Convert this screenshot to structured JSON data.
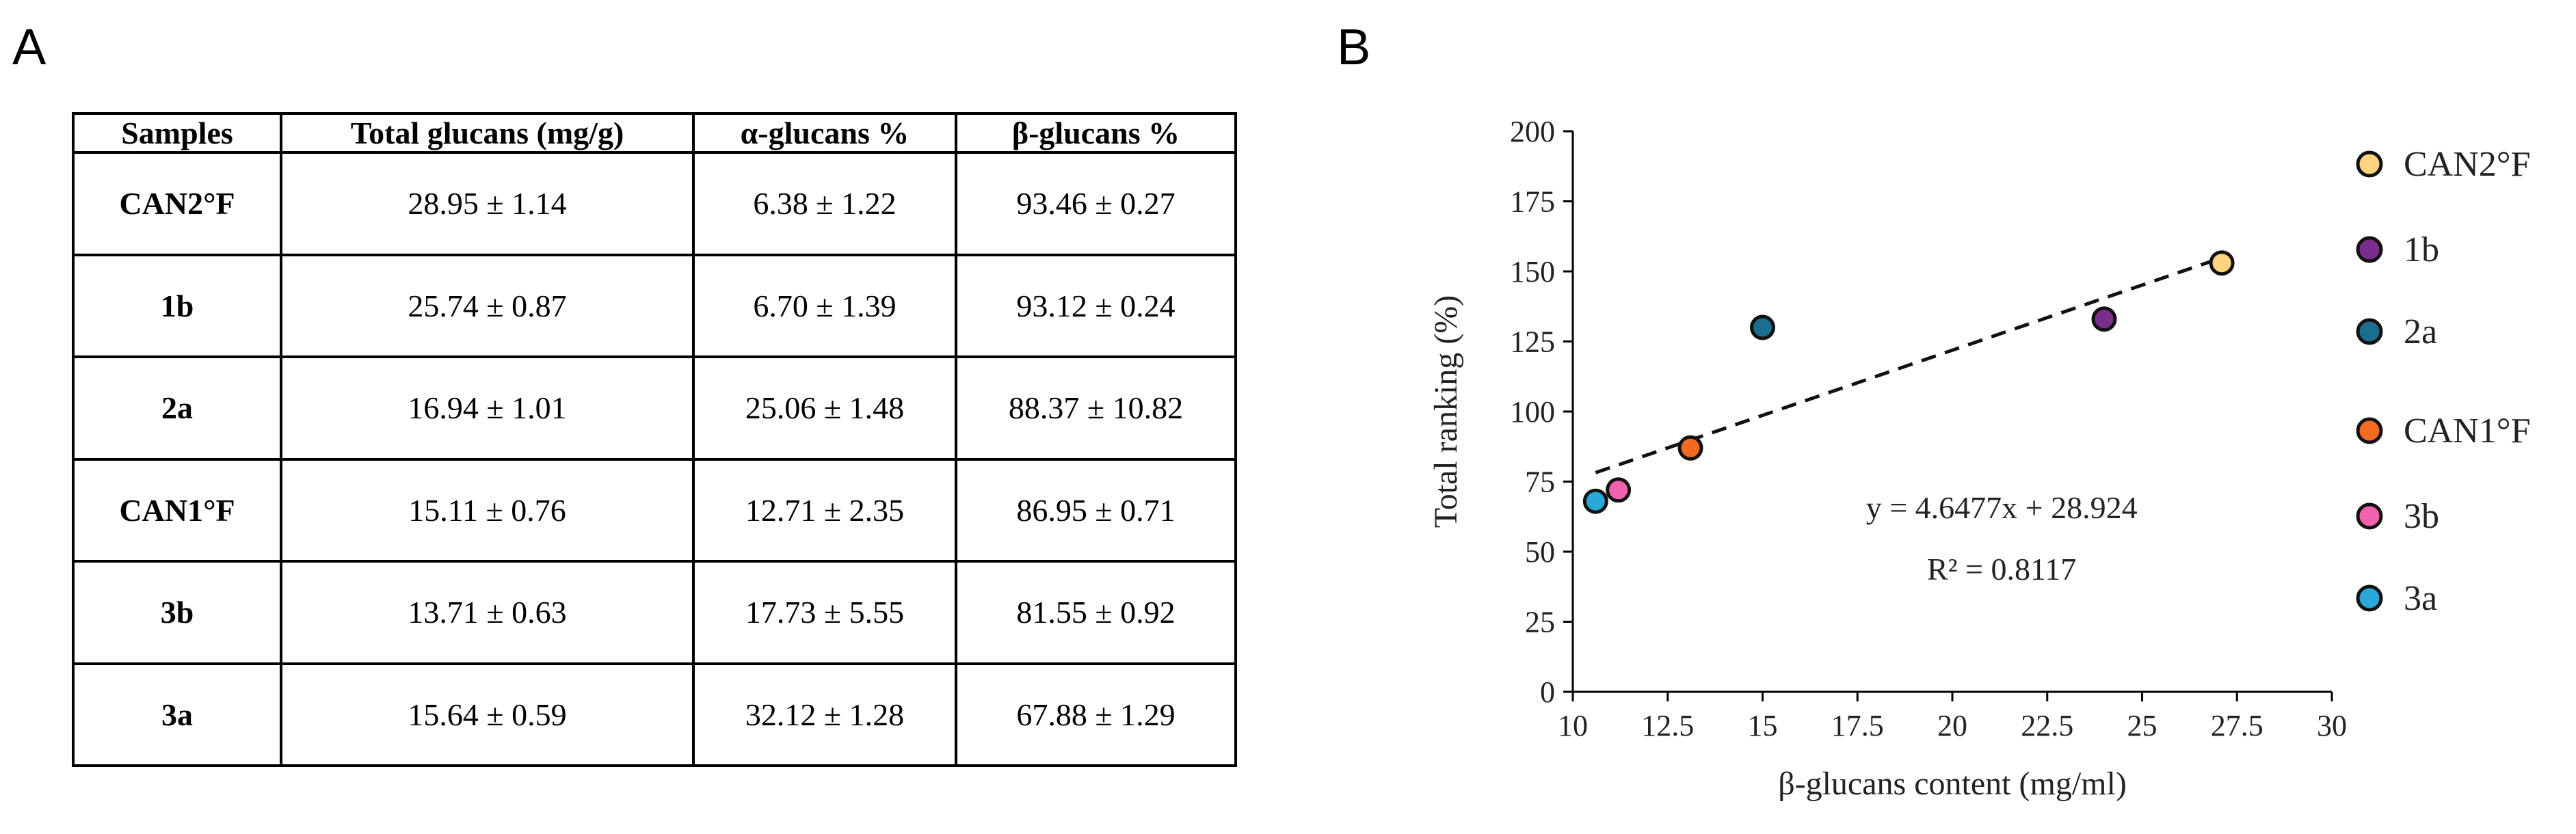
{
  "panels": {
    "a": "A",
    "b": "B"
  },
  "table": {
    "headers": [
      "Samples",
      "Total glucans (mg/g)",
      "α-glucans %",
      "β-glucans %"
    ],
    "rows": [
      [
        "CAN2°F",
        "28.95 ± 1.14",
        "6.38 ± 1.22",
        "93.46 ± 0.27"
      ],
      [
        "1b",
        "25.74 ± 0.87",
        "6.70 ± 1.39",
        "93.12 ± 0.24"
      ],
      [
        "2a",
        "16.94 ± 1.01",
        "25.06  ± 1.48",
        "88.37 ± 10.82"
      ],
      [
        "CAN1°F",
        "15.11 ± 0.76",
        "12.71 ± 2.35",
        "86.95 ± 0.71"
      ],
      [
        "3b",
        "13.71 ± 0.63",
        "17.73 ± 5.55",
        "81.55 ± 0.92"
      ],
      [
        "3a",
        "15.64 ± 0.59",
        "32.12  ± 1.28",
        "67.88  ± 1.29"
      ]
    ]
  },
  "chart_data": {
    "type": "scatter",
    "title": "",
    "xlabel": "β-glucans content (mg/ml)",
    "ylabel": "Total ranking (%)",
    "xlim": [
      10,
      30
    ],
    "ylim": [
      0,
      200
    ],
    "xticks": [
      "10",
      "12.5",
      "15",
      "17.5",
      "20",
      "22.5",
      "25",
      "27.5",
      "30"
    ],
    "yticks": [
      "0",
      "25",
      "50",
      "75",
      "100",
      "125",
      "150",
      "175",
      "200"
    ],
    "grid": false,
    "legend_position": "right",
    "series": [
      {
        "name": "CAN2°F",
        "x": 27.1,
        "y": 153,
        "color": "#FFD37F"
      },
      {
        "name": "1b",
        "x": 24.0,
        "y": 133,
        "color": "#7B2D8E"
      },
      {
        "name": "2a",
        "x": 15.0,
        "y": 130,
        "color": "#1B6E8F"
      },
      {
        "name": "CAN1°F",
        "x": 13.1,
        "y": 87,
        "color": "#F26B21"
      },
      {
        "name": "3b",
        "x": 11.2,
        "y": 72,
        "color": "#F062B0"
      },
      {
        "name": "3a",
        "x": 10.6,
        "y": 68,
        "color": "#29A9D9"
      }
    ],
    "trendline": {
      "slope": 4.6477,
      "intercept": 28.924,
      "x_from": 10.6,
      "x_to": 27.1,
      "style": "dashed"
    },
    "annotation": {
      "equation": "y = 4.6477x + 28.924",
      "r2": "R² = 0.8117"
    }
  }
}
